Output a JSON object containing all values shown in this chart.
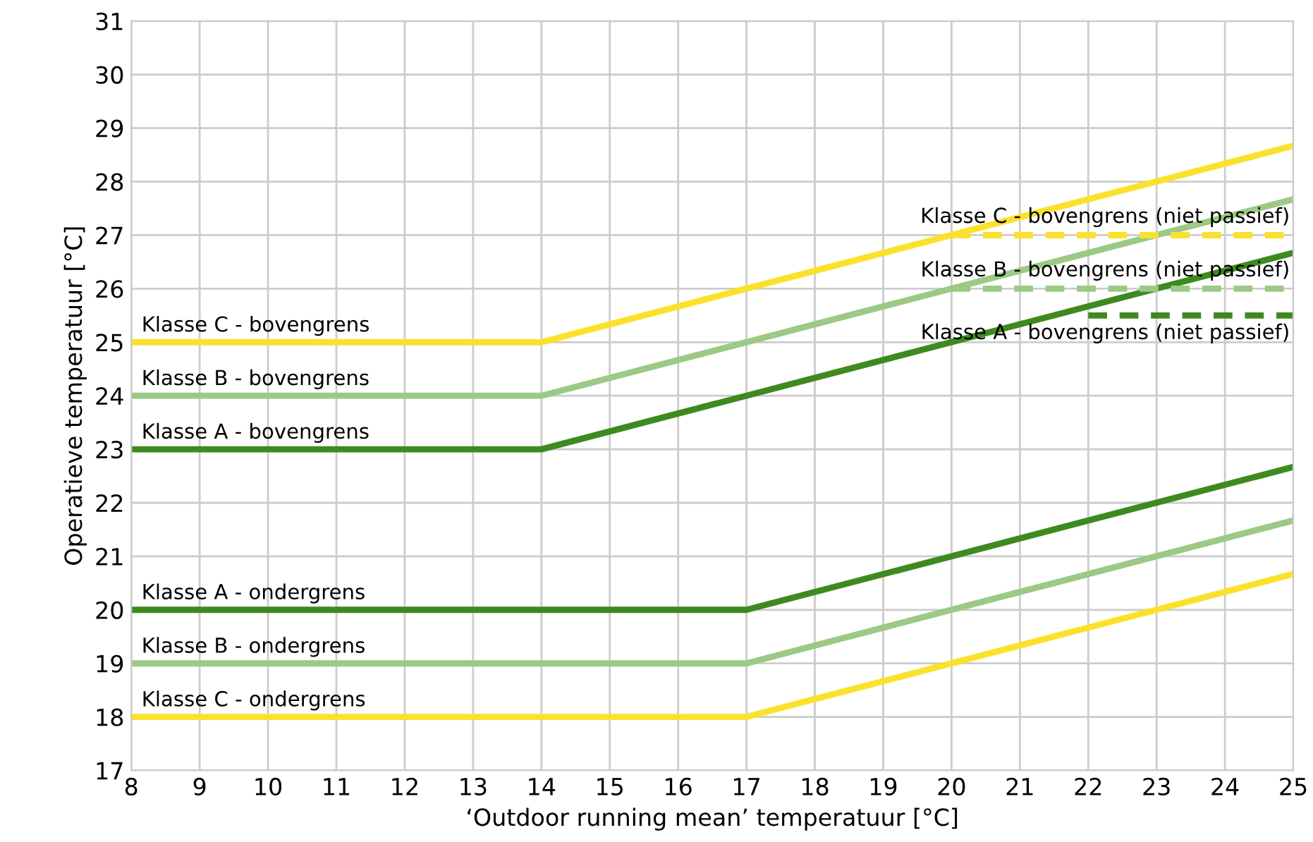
{
  "chart_data": {
    "type": "line",
    "xlabel": "‘Outdoor running mean’ temperatuur [°C]",
    "ylabel": "Operatieve temperatuur [°C]",
    "xlim": [
      8,
      25
    ],
    "ylim": [
      17,
      31
    ],
    "xticks": [
      8,
      9,
      10,
      11,
      12,
      13,
      14,
      15,
      16,
      17,
      18,
      19,
      20,
      21,
      22,
      23,
      24,
      25
    ],
    "yticks": [
      17,
      18,
      19,
      20,
      21,
      22,
      23,
      24,
      25,
      26,
      27,
      28,
      29,
      30,
      31
    ],
    "grid": true,
    "legend": false,
    "marker": "none",
    "series": [
      {
        "name": "Klasse C - bovengrens",
        "color": "#fbe12c",
        "x": [
          8,
          14,
          25
        ],
        "values": [
          25,
          25,
          28.67
        ],
        "line_style": "solid"
      },
      {
        "name": "Klasse B - bovengrens",
        "color": "#9cc985",
        "x": [
          8,
          14,
          25
        ],
        "values": [
          24,
          24,
          27.67
        ],
        "line_style": "solid"
      },
      {
        "name": "Klasse A - bovengrens",
        "color": "#3e8a1f",
        "x": [
          8,
          14,
          25
        ],
        "values": [
          23,
          23,
          26.67
        ],
        "line_style": "solid"
      },
      {
        "name": "Klasse A - ondergrens",
        "color": "#3e8a1f",
        "x": [
          8,
          17,
          25
        ],
        "values": [
          20,
          20,
          22.67
        ],
        "line_style": "solid"
      },
      {
        "name": "Klasse B - ondergrens",
        "color": "#9cc985",
        "x": [
          8,
          17,
          25
        ],
        "values": [
          19,
          19,
          21.67
        ],
        "line_style": "solid"
      },
      {
        "name": "Klasse C - ondergrens",
        "color": "#fbe12c",
        "x": [
          8,
          17,
          25
        ],
        "values": [
          18,
          18,
          20.67
        ],
        "line_style": "solid"
      },
      {
        "name": "Klasse C - bovengrens (niet passief)",
        "color": "#fbe12c",
        "x": [
          20,
          25
        ],
        "values": [
          27,
          27
        ],
        "line_style": "dashed"
      },
      {
        "name": "Klasse B - bovengrens (niet passief)",
        "color": "#9cc985",
        "x": [
          20,
          25
        ],
        "values": [
          26,
          26
        ],
        "line_style": "dashed"
      },
      {
        "name": "Klasse A - bovengrens (niet passief)",
        "color": "#3e8a1f",
        "x": [
          22,
          25
        ],
        "values": [
          25.5,
          25.5
        ],
        "line_style": "dashed"
      }
    ]
  }
}
